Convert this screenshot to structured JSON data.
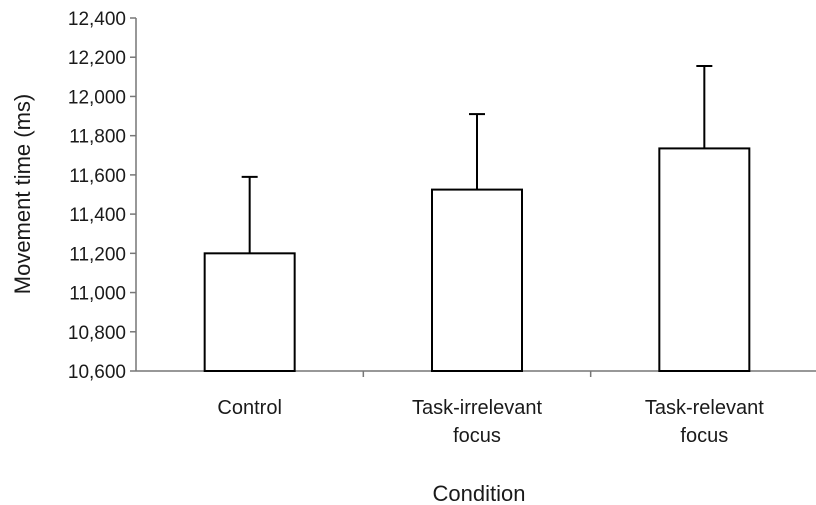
{
  "chart_data": {
    "type": "bar",
    "categories": [
      [
        "Control"
      ],
      [
        "Task-irrelevant",
        "focus"
      ],
      [
        "Task-relevant",
        "focus"
      ]
    ],
    "values": [
      11200,
      11525,
      11735
    ],
    "error_upper": [
      11590,
      11910,
      12155
    ],
    "title": "",
    "xlabel": "Condition",
    "ylabel": "Movement time (ms)",
    "ylim": [
      10600,
      12400
    ],
    "yticks": [
      "10,600",
      "10,800",
      "11,000",
      "11,200",
      "11,400",
      "11,600",
      "11,800",
      "12,000",
      "12,200",
      "12,400"
    ],
    "ytick_values": [
      10600,
      10800,
      11000,
      11200,
      11400,
      11600,
      11800,
      12000,
      12200,
      12400
    ],
    "grid": false,
    "legend": "none",
    "colors": {
      "bar_fill": "#ffffff",
      "bar_stroke": "#000000",
      "axis": "#777777"
    }
  }
}
